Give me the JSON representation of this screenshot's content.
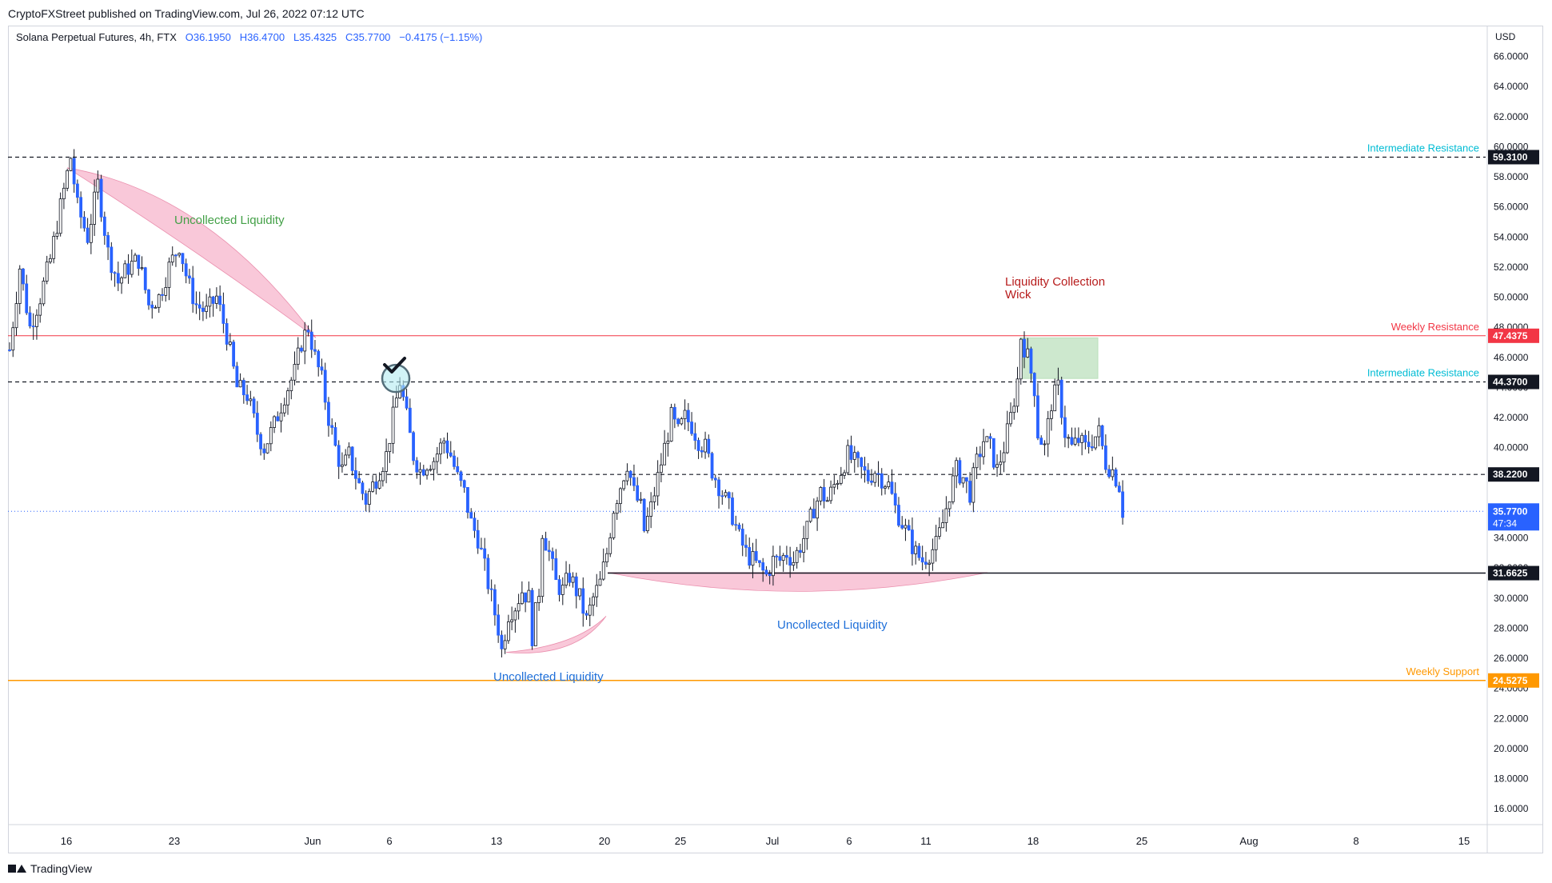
{
  "header": {
    "published_by": "CryptoFXStreet published on TradingView.com, Jul 26, 2022 07:12 UTC"
  },
  "legend": {
    "symbol": "Solana Perpetual Futures, 4h, FTX",
    "o_label": "O",
    "o_value": "36.1950",
    "h_label": "H",
    "h_value": "36.4700",
    "l_label": "L",
    "l_value": "35.4325",
    "c_label": "C",
    "c_value": "35.7700",
    "change": "−0.4175 (−1.15%)"
  },
  "footer": {
    "brand": "TradingView"
  },
  "colors": {
    "up": "#ffffff",
    "down": "#2962ff",
    "wick": "#131722",
    "weekly_resistance": "#f23645",
    "weekly_support": "#ff9800",
    "intermediate": "#00bcd4",
    "pink_fill": "#f8bbd0",
    "green_zone": "#a5d6a7"
  },
  "chart_data": {
    "type": "candlestick",
    "currency": "USD",
    "price_axis": {
      "min": 15.0,
      "max": 68.0,
      "ticks": [
        "16.0000",
        "18.0000",
        "20.0000",
        "22.0000",
        "24.0000",
        "26.0000",
        "28.0000",
        "30.0000",
        "32.0000",
        "34.0000",
        "36.0000",
        "38.0000",
        "40.0000",
        "42.0000",
        "44.0000",
        "46.0000",
        "48.0000",
        "50.0000",
        "52.0000",
        "54.0000",
        "56.0000",
        "58.0000",
        "60.0000",
        "62.0000",
        "64.0000",
        "66.0000"
      ]
    },
    "time_axis": {
      "labels": [
        "16",
        "23",
        "Jun",
        "6",
        "13",
        "20",
        "25",
        "Jul",
        "6",
        "11",
        "18",
        "25",
        "Aug",
        "8",
        "15"
      ]
    },
    "last_price": {
      "value": "35.7700",
      "countdown": "47:34"
    },
    "levels": [
      {
        "id": "lvl-59",
        "price": 59.31,
        "label": "59.3100",
        "style": "dashed",
        "color": "#131722",
        "tag": "Intermediate Resistance",
        "tag_color": "#00bcd4"
      },
      {
        "id": "lvl-47",
        "price": 47.4375,
        "label": "47.4375",
        "style": "solid",
        "color": "#f23645",
        "tag": "Weekly Resistance",
        "tag_color": "#f23645"
      },
      {
        "id": "lvl-44",
        "price": 44.37,
        "label": "44.3700",
        "style": "dashed",
        "color": "#131722",
        "tag": "Intermediate Resistance",
        "tag_color": "#00bcd4"
      },
      {
        "id": "lvl-38",
        "price": 38.22,
        "label": "38.2200",
        "style": "dashed",
        "color": "#131722",
        "tag": "",
        "tag_color": ""
      },
      {
        "id": "lvl-31",
        "price": 31.6625,
        "label": "31.6625",
        "style": "solid",
        "color": "#131722",
        "tag": "",
        "tag_color": ""
      },
      {
        "id": "lvl-24",
        "price": 24.5275,
        "label": "24.5275",
        "style": "solid",
        "color": "#ff9800",
        "tag": "Weekly Support",
        "tag_color": "#ff9800"
      }
    ],
    "annotations": [
      {
        "id": "ann-uncollected-1",
        "text": "Uncollected Liquidity",
        "color": "#43a047"
      },
      {
        "id": "ann-uncollected-2",
        "text": "Uncollected Liquidity",
        "color": "#1e6fd9"
      },
      {
        "id": "ann-uncollected-3",
        "text": "Uncollected Liquidity",
        "color": "#1e6fd9"
      },
      {
        "id": "ann-liq-wick-1",
        "text": "Liquidity Collection",
        "color": "#b71c1c"
      },
      {
        "id": "ann-liq-wick-2",
        "text": "Wick",
        "color": "#b71c1c"
      }
    ],
    "price_path": [
      [
        0,
        46.5
      ],
      [
        6,
        52
      ],
      [
        12,
        48
      ],
      [
        18,
        50
      ],
      [
        24,
        52.5
      ],
      [
        30,
        56
      ],
      [
        36,
        59.3
      ],
      [
        40,
        56
      ],
      [
        46,
        54
      ],
      [
        52,
        57.5
      ],
      [
        58,
        53
      ],
      [
        64,
        51
      ],
      [
        70,
        52
      ],
      [
        76,
        52.5
      ],
      [
        82,
        49.5
      ],
      [
        88,
        50
      ],
      [
        94,
        52
      ],
      [
        100,
        53.5
      ],
      [
        105,
        51
      ],
      [
        110,
        49.5
      ],
      [
        116,
        49
      ],
      [
        122,
        50
      ],
      [
        128,
        47.5
      ],
      [
        134,
        44
      ],
      [
        140,
        43.5
      ],
      [
        146,
        41
      ],
      [
        150,
        40
      ],
      [
        156,
        41.5
      ],
      [
        162,
        43.5
      ],
      [
        168,
        45
      ],
      [
        172,
        47
      ],
      [
        176,
        48
      ],
      [
        180,
        46
      ],
      [
        184,
        44.5
      ],
      [
        188,
        42
      ],
      [
        192,
        40
      ],
      [
        196,
        38.5
      ],
      [
        200,
        39.5
      ],
      [
        206,
        37.5
      ],
      [
        210,
        36.5
      ],
      [
        214,
        37.5
      ],
      [
        218,
        38.5
      ],
      [
        222,
        39.5
      ],
      [
        226,
        42
      ],
      [
        230,
        44.4
      ],
      [
        234,
        42
      ],
      [
        238,
        39.5
      ],
      [
        242,
        38.5
      ],
      [
        246,
        39
      ],
      [
        250,
        39.2
      ],
      [
        256,
        40.5
      ],
      [
        260,
        39.5
      ],
      [
        264,
        38
      ],
      [
        268,
        37
      ],
      [
        272,
        35
      ],
      [
        276,
        34
      ],
      [
        280,
        32
      ],
      [
        284,
        30
      ],
      [
        288,
        28
      ],
      [
        290,
        26.5
      ],
      [
        294,
        29
      ],
      [
        298,
        29.5
      ],
      [
        302,
        30.5
      ],
      [
        306,
        30
      ],
      [
        308,
        27.5
      ],
      [
        312,
        30.5
      ],
      [
        314,
        34.5
      ],
      [
        318,
        33
      ],
      [
        322,
        31
      ],
      [
        326,
        30.5
      ],
      [
        330,
        31.5
      ],
      [
        336,
        30
      ],
      [
        340,
        28.5
      ],
      [
        344,
        30
      ],
      [
        348,
        31
      ],
      [
        352,
        33
      ],
      [
        356,
        36
      ],
      [
        360,
        37.5
      ],
      [
        364,
        39
      ],
      [
        368,
        37
      ],
      [
        372,
        36
      ],
      [
        374,
        34.5
      ],
      [
        378,
        36
      ],
      [
        382,
        38
      ],
      [
        386,
        40
      ],
      [
        390,
        42
      ],
      [
        394,
        41
      ],
      [
        398,
        42
      ],
      [
        402,
        41.5
      ],
      [
        406,
        40.5
      ],
      [
        410,
        40
      ],
      [
        414,
        38.5
      ],
      [
        418,
        37.5
      ],
      [
        422,
        36.5
      ],
      [
        426,
        35.5
      ],
      [
        430,
        34
      ],
      [
        434,
        33
      ],
      [
        438,
        32.5
      ],
      [
        442,
        32
      ],
      [
        446,
        31.5
      ],
      [
        450,
        32.5
      ],
      [
        454,
        32.5
      ],
      [
        458,
        33
      ],
      [
        462,
        32.5
      ],
      [
        466,
        33.5
      ],
      [
        470,
        34.5
      ],
      [
        474,
        36
      ],
      [
        478,
        37
      ],
      [
        482,
        36.5
      ],
      [
        486,
        37.5
      ],
      [
        490,
        38.5
      ],
      [
        494,
        39.5
      ],
      [
        498,
        39
      ],
      [
        502,
        38.5
      ],
      [
        506,
        38
      ],
      [
        510,
        38.5
      ],
      [
        514,
        38
      ],
      [
        518,
        37.5
      ],
      [
        522,
        36
      ],
      [
        526,
        35
      ],
      [
        530,
        34
      ],
      [
        534,
        33
      ],
      [
        538,
        32.5
      ],
      [
        542,
        33
      ],
      [
        546,
        33.5
      ],
      [
        550,
        35
      ],
      [
        554,
        37
      ],
      [
        558,
        38.5
      ],
      [
        562,
        38
      ],
      [
        566,
        37
      ],
      [
        570,
        39
      ],
      [
        574,
        40.5
      ],
      [
        578,
        40
      ],
      [
        582,
        38.5
      ],
      [
        586,
        40
      ],
      [
        590,
        42
      ],
      [
        594,
        44.5
      ],
      [
        596,
        47.4
      ],
      [
        600,
        46
      ],
      [
        604,
        44
      ],
      [
        606,
        41
      ],
      [
        610,
        40
      ],
      [
        614,
        43
      ],
      [
        618,
        44
      ],
      [
        622,
        41
      ],
      [
        626,
        40
      ],
      [
        630,
        40.5
      ],
      [
        634,
        40
      ],
      [
        638,
        40.5
      ],
      [
        642,
        41
      ],
      [
        646,
        39
      ],
      [
        650,
        38.5
      ],
      [
        654,
        37.5
      ],
      [
        656,
        35.8
      ]
    ],
    "price_path_index_max": 680
  }
}
